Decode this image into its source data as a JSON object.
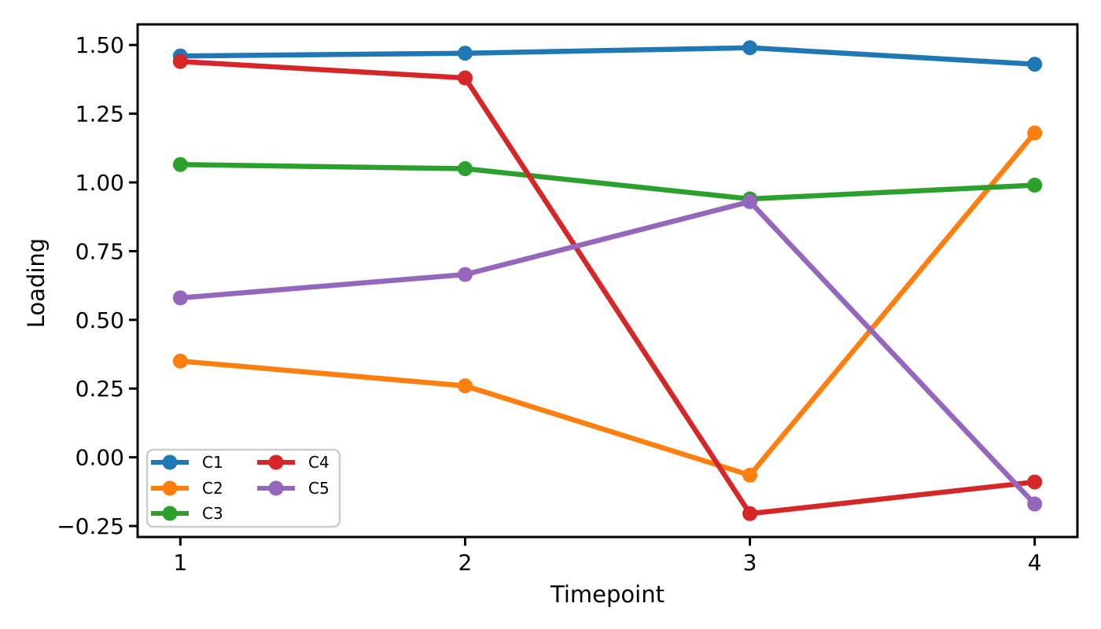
{
  "chart_data": {
    "type": "line",
    "title": "",
    "xlabel": "Timepoint",
    "ylabel": "Loading",
    "x": [
      1,
      2,
      3,
      4
    ],
    "series": [
      {
        "name": "C1",
        "color": "#1f77b4",
        "values": [
          1.46,
          1.47,
          1.49,
          1.43
        ]
      },
      {
        "name": "C2",
        "color": "#ff7f0e",
        "values": [
          0.35,
          0.26,
          -0.065,
          1.18
        ]
      },
      {
        "name": "C3",
        "color": "#2ca02c",
        "values": [
          1.065,
          1.05,
          0.94,
          0.99
        ]
      },
      {
        "name": "C4",
        "color": "#d62728",
        "values": [
          1.44,
          1.38,
          -0.205,
          -0.09
        ]
      },
      {
        "name": "C5",
        "color": "#9467bd",
        "values": [
          0.58,
          0.665,
          0.93,
          -0.17
        ]
      }
    ],
    "xlim": [
      0.85,
      4.15
    ],
    "ylim": [
      -0.29,
      1.575
    ],
    "xticks": {
      "values": [
        1,
        2,
        3,
        4
      ],
      "labels": [
        "1",
        "2",
        "3",
        "4"
      ]
    },
    "yticks": {
      "values": [
        -0.25,
        0.0,
        0.25,
        0.5,
        0.75,
        1.0,
        1.25,
        1.5
      ],
      "labels": [
        "−0.25",
        "0.00",
        "0.25",
        "0.50",
        "0.75",
        "1.00",
        "1.25",
        "1.50"
      ]
    },
    "grid": false,
    "marker": "o",
    "legend": {
      "position": "lower-left",
      "columns": 2,
      "entries": [
        "C1",
        "C2",
        "C3",
        "C4",
        "C5"
      ]
    },
    "frame_color": "#000000",
    "legend_border_color": "#cccccc"
  }
}
